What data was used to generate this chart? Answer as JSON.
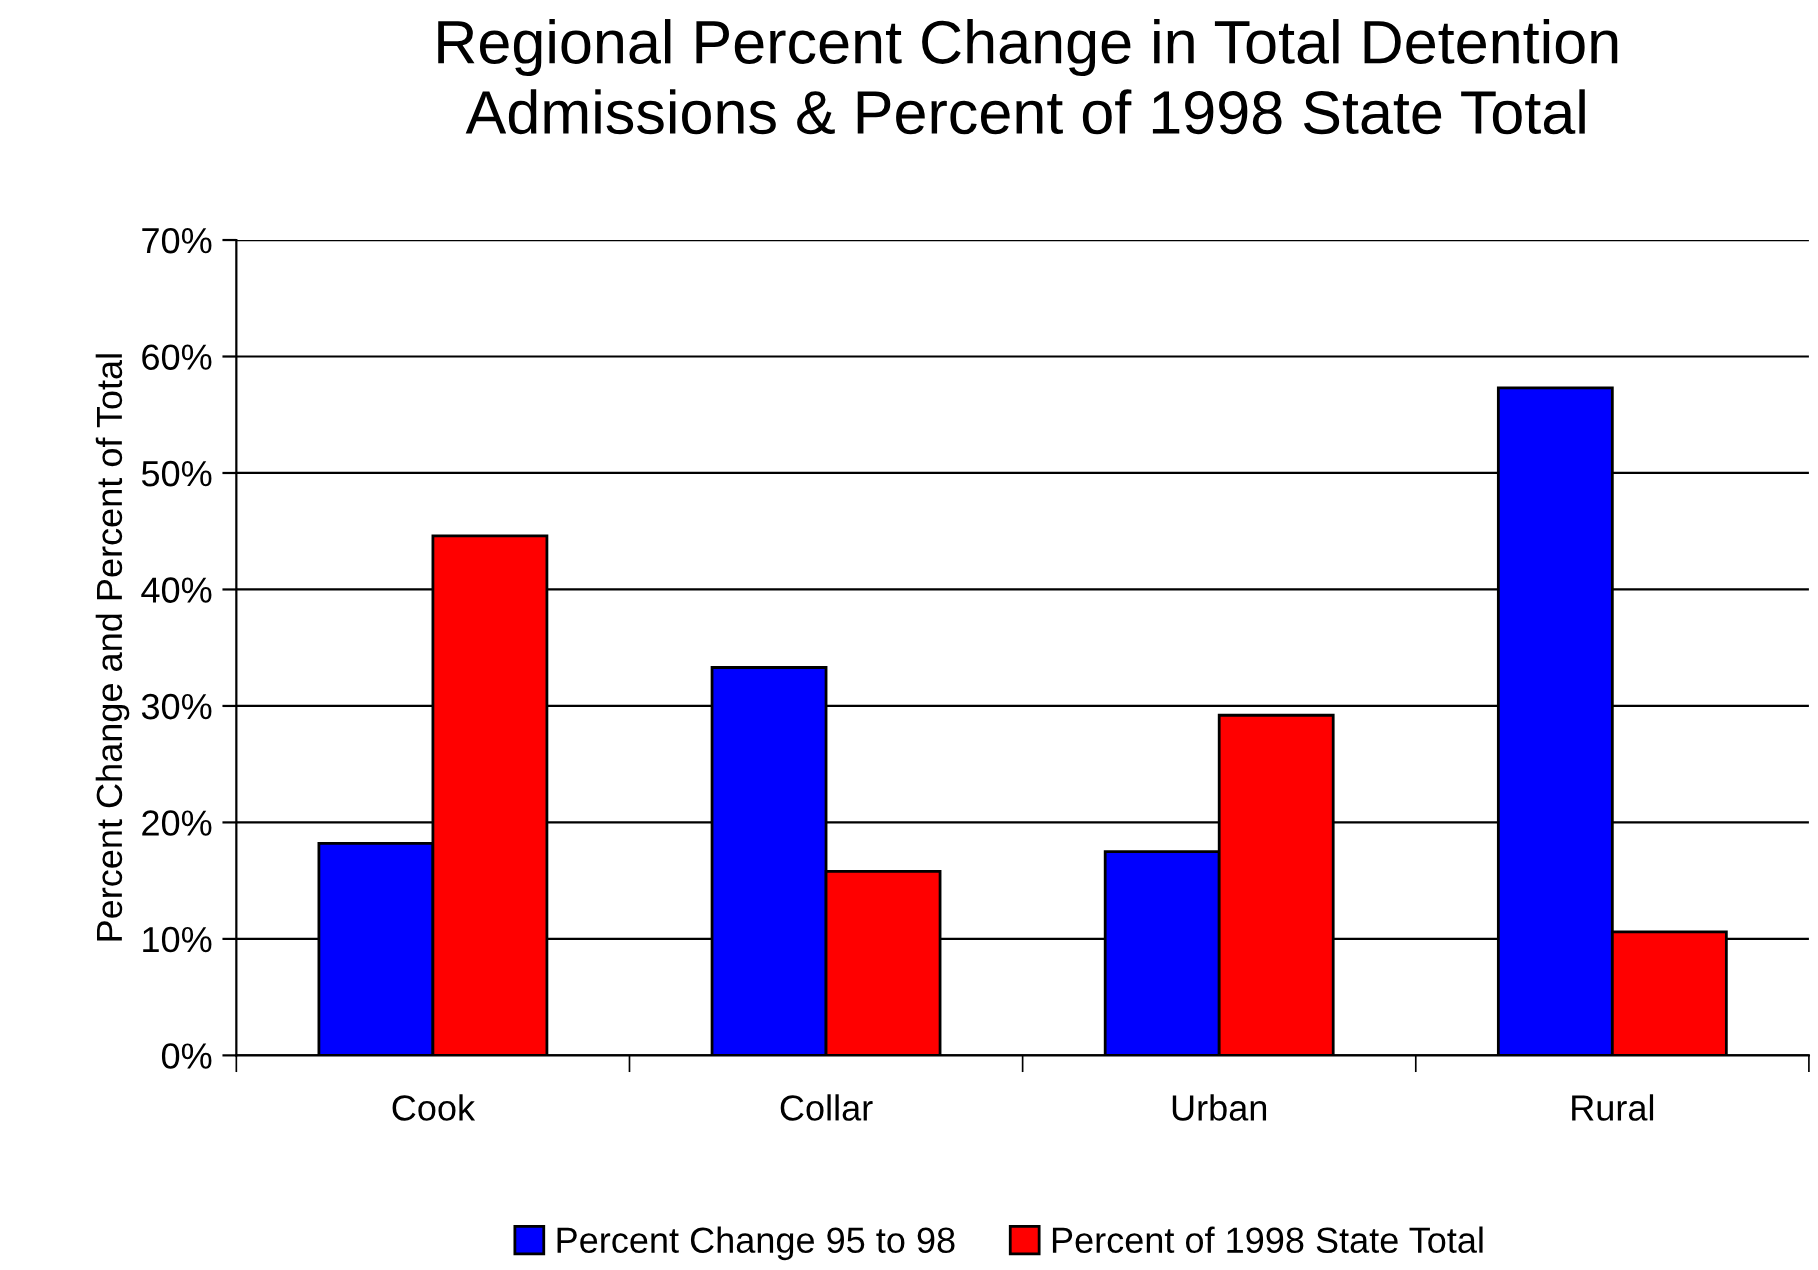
{
  "chart_data": {
    "type": "bar",
    "title": "Regional Percent Change in Total Detention\nAdmissions & Percent of 1998 State Total",
    "ylabel": "Percent Change and Percent of Total",
    "categories": [
      "Cook",
      "Collar",
      "Urban",
      "Rural"
    ],
    "series": [
      {
        "name": "Percent Change 95 to 98",
        "color": "#0000ff",
        "values": [
          18.2,
          33.3,
          17.5,
          57.3
        ]
      },
      {
        "name": "Percent of 1998 State Total",
        "color": "#ff0000",
        "values": [
          44.6,
          15.8,
          29.2,
          10.6
        ]
      }
    ],
    "ylim": [
      0,
      70
    ],
    "yticks": [
      {
        "value": 0,
        "label": "0%"
      },
      {
        "value": 10,
        "label": "10%"
      },
      {
        "value": 20,
        "label": "20%"
      },
      {
        "value": 30,
        "label": "30%"
      },
      {
        "value": 40,
        "label": "40%"
      },
      {
        "value": 50,
        "label": "50%"
      },
      {
        "value": 60,
        "label": "60%"
      },
      {
        "value": 70,
        "label": "70%"
      }
    ],
    "grid": "y",
    "legend": "bottom"
  }
}
